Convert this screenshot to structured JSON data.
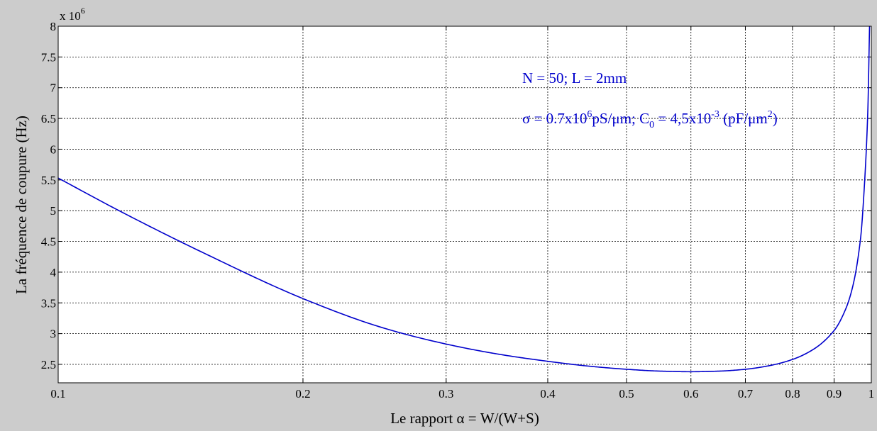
{
  "chart_data": {
    "type": "line",
    "title": "",
    "xlabel": "Le rapport α = W/(W+S)",
    "ylabel": "La fréquence de coupure (Hz)",
    "x_scale": "log",
    "xlim": [
      0.1,
      1.0
    ],
    "ylim": [
      2.2,
      8.0
    ],
    "y_multiplier_label": {
      "base": "x 10",
      "exponent": "6"
    },
    "x_ticks": [
      0.1,
      0.2,
      0.3,
      0.4,
      0.5,
      0.6,
      0.7,
      0.8,
      0.9,
      1.0
    ],
    "x_tick_labels": [
      "0.1",
      "0.2",
      "0.3",
      "0.4",
      "0.5",
      "0.6",
      "0.7",
      "0.8",
      "0.9",
      "1"
    ],
    "y_ticks": [
      2.5,
      3,
      3.5,
      4,
      4.5,
      5,
      5.5,
      6,
      6.5,
      7,
      7.5,
      8
    ],
    "y_tick_labels": [
      "2.5",
      "3",
      "3.5",
      "4",
      "4.5",
      "5",
      "5.5",
      "6",
      "6.5",
      "7",
      "7.5",
      "8"
    ],
    "grid": true,
    "series": [
      {
        "color": "#0000cc",
        "x": [
          0.1,
          0.12,
          0.15,
          0.2,
          0.25,
          0.3,
          0.35,
          0.4,
          0.45,
          0.5,
          0.55,
          0.6,
          0.65,
          0.7,
          0.75,
          0.8,
          0.85,
          0.9,
          0.93,
          0.95,
          0.97,
          0.98,
          0.99,
          0.995
        ],
        "y": [
          5.53,
          4.97,
          4.33,
          3.57,
          3.1,
          2.83,
          2.66,
          2.55,
          2.47,
          2.42,
          2.39,
          2.38,
          2.39,
          2.42,
          2.48,
          2.58,
          2.75,
          3.05,
          3.4,
          3.8,
          4.55,
          5.35,
          6.6,
          8.0
        ]
      }
    ],
    "annotations": {
      "line1": "N = 50; L = 2mm",
      "line2": {
        "sigma_prefix": "σ = 0.7x10",
        "sigma_exp": "6",
        "sigma_unit": "pS/μm; C",
        "c_sub": "0",
        "c_value": " = 4,5x10",
        "c_exp": "-3",
        "c_unit": " (pF/μm",
        "c_unit_exp": "2",
        "close": ")"
      }
    }
  }
}
